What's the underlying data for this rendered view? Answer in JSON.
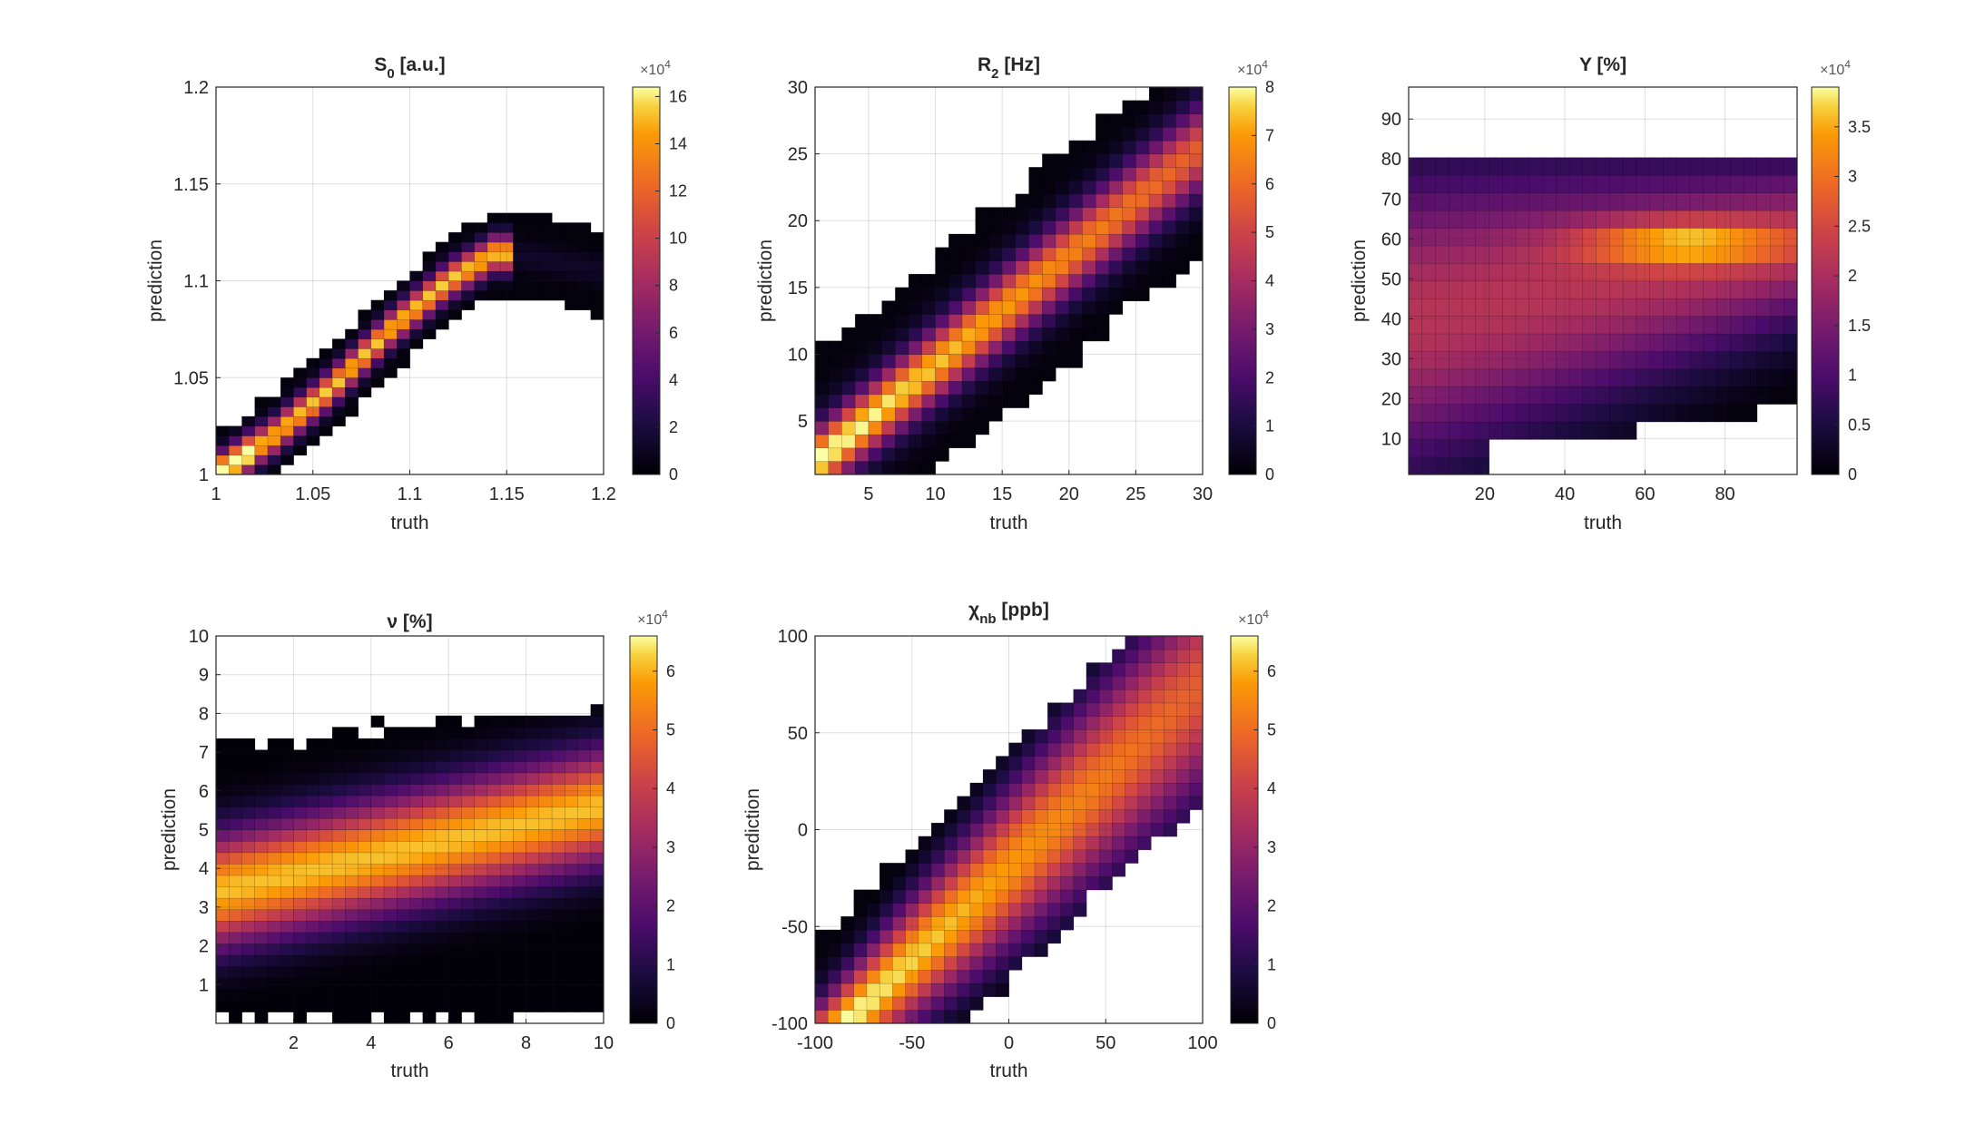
{
  "figure": {
    "colormap": "inferno"
  },
  "chart_data": [
    {
      "type": "heatmap",
      "id": "s0",
      "title_main": "S",
      "title_sub": "0",
      "title_rest": " [a.u.]",
      "xlabel": "truth",
      "ylabel": "prediction",
      "xlim": [
        1,
        1.2
      ],
      "ylim": [
        1,
        1.2
      ],
      "xticks": [
        1,
        1.05,
        1.1,
        1.15,
        1.2
      ],
      "xtick_labels": [
        "1",
        "1.05",
        "1.1",
        "1.15",
        "1.2"
      ],
      "yticks": [
        1,
        1.05,
        1.1,
        1.15,
        1.2
      ],
      "ytick_labels": [
        "1",
        "1.05",
        "1.1",
        "1.15",
        "1.2"
      ],
      "colorbar": {
        "max": 16.4,
        "ticks": [
          0,
          2,
          4,
          6,
          8,
          10,
          12,
          14,
          16
        ],
        "tick_labels": [
          "0",
          "2",
          "4",
          "6",
          "8",
          "10",
          "12",
          "14",
          "16"
        ],
        "exponent_base": "×10",
        "exponent_power": "4"
      },
      "grid": {
        "nx": 30,
        "ny": 40,
        "pattern": "curve",
        "curve": [
          [
            1.0,
            1.0
          ],
          [
            1.03,
            1.02
          ],
          [
            1.06,
            1.045
          ],
          [
            1.09,
            1.075
          ],
          [
            1.12,
            1.1
          ],
          [
            1.145,
            1.115
          ],
          [
            1.2,
            1.105
          ]
        ],
        "width": 0.006,
        "halo": 0.02,
        "xmin_support": 1.0
      }
    },
    {
      "type": "heatmap",
      "id": "r2",
      "title_main": "R",
      "title_sub": "2",
      "title_rest": " [Hz]",
      "xlabel": "truth",
      "ylabel": "prediction",
      "xlim": [
        1,
        30
      ],
      "ylim": [
        1,
        30
      ],
      "xticks": [
        5,
        10,
        15,
        20,
        25,
        30
      ],
      "xtick_labels": [
        "5",
        "10",
        "15",
        "20",
        "25",
        "30"
      ],
      "yticks": [
        5,
        10,
        15,
        20,
        25,
        30
      ],
      "ytick_labels": [
        "5",
        "10",
        "15",
        "20",
        "25",
        "30"
      ],
      "colorbar": {
        "max": 8,
        "ticks": [
          0,
          1,
          2,
          3,
          4,
          5,
          6,
          7,
          8
        ],
        "tick_labels": [
          "0",
          "1",
          "2",
          "3",
          "4",
          "5",
          "6",
          "7",
          "8"
        ],
        "exponent_base": "×10",
        "exponent_power": "4"
      },
      "grid": {
        "nx": 29,
        "ny": 29,
        "pattern": "diag",
        "slope": 0.82,
        "offset": 1.0,
        "width": 1.6,
        "halo": 7.5,
        "top_cut": 22.5
      }
    },
    {
      "type": "heatmap",
      "id": "y",
      "title_main": "Y [%]",
      "title_sub": "",
      "title_rest": "",
      "xlabel": "truth",
      "ylabel": "prediction",
      "xlim": [
        1,
        98
      ],
      "ylim": [
        1,
        98
      ],
      "xticks": [
        20,
        40,
        60,
        80
      ],
      "xtick_labels": [
        "20",
        "40",
        "60",
        "80"
      ],
      "yticks": [
        10,
        20,
        30,
        40,
        50,
        60,
        70,
        80,
        90
      ],
      "ytick_labels": [
        "10",
        "20",
        "30",
        "40",
        "50",
        "60",
        "70",
        "80",
        "90"
      ],
      "colorbar": {
        "max": 3.9,
        "ticks": [
          0,
          0.5,
          1,
          1.5,
          2,
          2.5,
          3,
          3.5
        ],
        "tick_labels": [
          "0",
          "0.5",
          "1",
          "1.5",
          "2",
          "2.5",
          "3",
          "3.5"
        ],
        "exponent_base": "×10",
        "exponent_power": "4"
      },
      "grid": {
        "nx": 29,
        "ny": 22,
        "pattern": "fan",
        "ytop": 82,
        "peak_y": 59,
        "peak_x": 70
      }
    },
    {
      "type": "heatmap",
      "id": "nu",
      "title_main": "ν [%]",
      "title_sub": "",
      "title_rest": "",
      "xlabel": "truth",
      "ylabel": "prediction",
      "xlim": [
        0,
        10
      ],
      "ylim": [
        0,
        10
      ],
      "xticks": [
        2,
        4,
        6,
        8,
        10
      ],
      "xtick_labels": [
        "2",
        "4",
        "6",
        "8",
        "10"
      ],
      "yticks": [
        1,
        2,
        3,
        4,
        5,
        6,
        7,
        8,
        9,
        10
      ],
      "ytick_labels": [
        "1",
        "2",
        "3",
        "4",
        "5",
        "6",
        "7",
        "8",
        "9",
        "10"
      ],
      "colorbar": {
        "max": 6.6,
        "ticks": [
          0,
          1,
          2,
          3,
          4,
          5,
          6
        ],
        "tick_labels": [
          "0",
          "1",
          "2",
          "3",
          "4",
          "5",
          "6"
        ],
        "exponent_base": "×10",
        "exponent_power": "4"
      },
      "grid": {
        "nx": 30,
        "ny": 34,
        "pattern": "band",
        "start_center": 3.4,
        "end_center": 5.6,
        "width": 1.0,
        "ytop": 7.0
      }
    },
    {
      "type": "heatmap",
      "id": "chi",
      "title_main": "χ",
      "title_sub": "nb",
      "title_rest": " [ppb]",
      "xlabel": "truth",
      "ylabel": "prediction",
      "xlim": [
        -100,
        100
      ],
      "ylim": [
        -100,
        100
      ],
      "xticks": [
        -100,
        -50,
        0,
        50,
        100
      ],
      "xtick_labels": [
        "-100",
        "-50",
        "0",
        "50",
        "100"
      ],
      "yticks": [
        -100,
        -50,
        0,
        50,
        100
      ],
      "ytick_labels": [
        "-100",
        "-50",
        "0",
        "50",
        "100"
      ],
      "colorbar": {
        "max": 6.6,
        "ticks": [
          0,
          1,
          2,
          3,
          4,
          5,
          6
        ],
        "tick_labels": [
          "0",
          "1",
          "2",
          "3",
          "4",
          "5",
          "6"
        ],
        "exponent_base": "×10",
        "exponent_power": "4"
      },
      "grid": {
        "nx": 30,
        "ny": 29,
        "pattern": "diag",
        "slope": 0.95,
        "offset": -20,
        "width": 14,
        "halo": 55,
        "top_cut": 100
      }
    }
  ]
}
